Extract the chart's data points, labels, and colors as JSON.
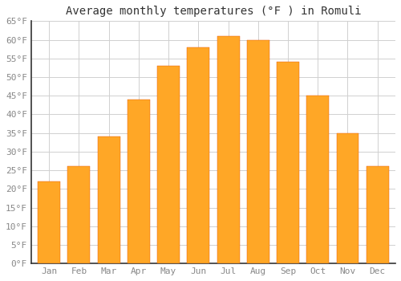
{
  "title": "Average monthly temperatures (°F ) in Romuli",
  "months": [
    "Jan",
    "Feb",
    "Mar",
    "Apr",
    "May",
    "Jun",
    "Jul",
    "Aug",
    "Sep",
    "Oct",
    "Nov",
    "Dec"
  ],
  "values": [
    22,
    26,
    34,
    44,
    53,
    58,
    61,
    60,
    54,
    45,
    35,
    26
  ],
  "bar_color_main": "#FFA726",
  "bar_color_edge": "#FFB74D",
  "ylim": [
    0,
    65
  ],
  "yticks": [
    0,
    5,
    10,
    15,
    20,
    25,
    30,
    35,
    40,
    45,
    50,
    55,
    60,
    65
  ],
  "background_color": "#ffffff",
  "grid_color": "#d0d0d0",
  "title_fontsize": 10,
  "tick_fontsize": 8,
  "font_family": "monospace",
  "title_color": "#333333",
  "tick_color": "#888888",
  "bar_width": 0.75
}
